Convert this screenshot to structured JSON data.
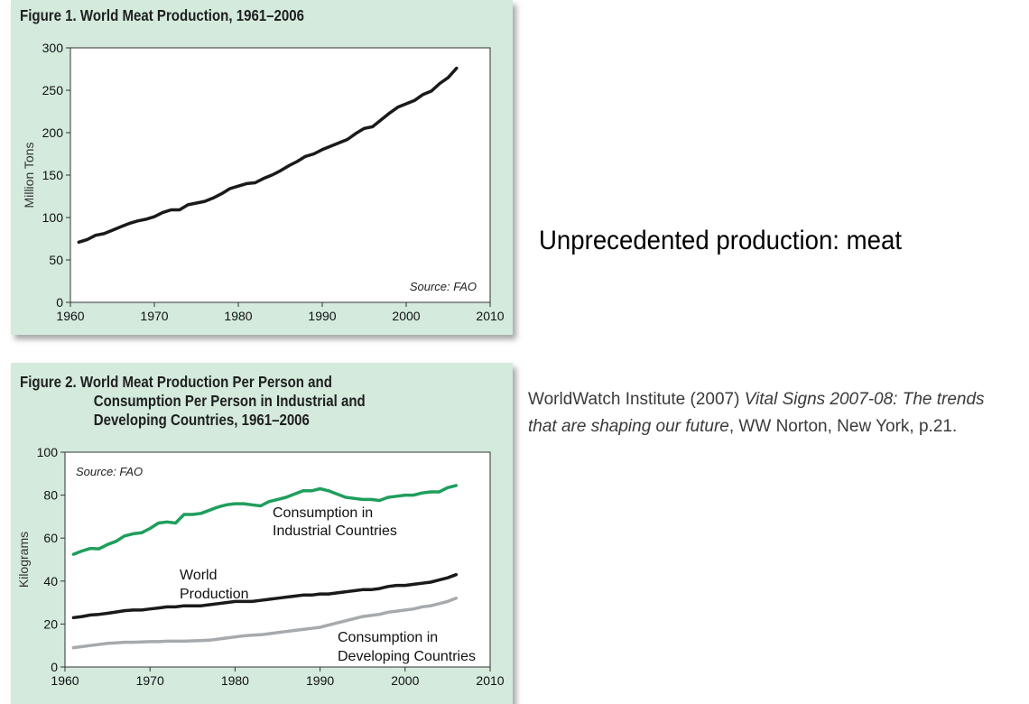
{
  "figure1": {
    "title": "Figure 1. World Meat Production, 1961–2006",
    "source": "Source: FAO",
    "chart_data": {
      "type": "line",
      "title": "Figure 1. World Meat Production, 1961–2006",
      "ylabel": "Million Tons",
      "xlabel": "",
      "xlim": [
        1960,
        2010
      ],
      "ylim": [
        0,
        300
      ],
      "xticks": [
        1960,
        1970,
        1980,
        1990,
        2000,
        2010
      ],
      "yticks": [
        0,
        50,
        100,
        150,
        200,
        250,
        300
      ],
      "grid": false,
      "series": [
        {
          "color": "#1a1a1a",
          "x": [
            1961,
            1962,
            1963,
            1964,
            1965,
            1966,
            1967,
            1968,
            1969,
            1970,
            1971,
            1972,
            1973,
            1974,
            1975,
            1976,
            1977,
            1978,
            1979,
            1980,
            1981,
            1982,
            1983,
            1984,
            1985,
            1986,
            1987,
            1988,
            1989,
            1990,
            1991,
            1992,
            1993,
            1994,
            1995,
            1996,
            1997,
            1998,
            1999,
            2000,
            2001,
            2002,
            2003,
            2004,
            2005,
            2006
          ],
          "y": [
            71,
            74,
            79,
            81,
            85,
            89,
            93,
            96,
            98,
            101,
            106,
            109,
            109,
            115,
            117,
            119,
            123,
            128,
            134,
            137,
            140,
            141,
            146,
            150,
            155,
            161,
            166,
            172,
            175,
            180,
            184,
            188,
            192,
            199,
            205,
            207,
            215,
            223,
            230,
            234,
            238,
            245,
            249,
            258,
            265,
            276
          ]
        }
      ]
    }
  },
  "figure2": {
    "title_line1": "Figure 2. World Meat Production Per Person and",
    "title_line2": "Consumption Per Person in Industrial and",
    "title_line3": "Developing Countries, 1961–2006",
    "source": "Source: FAO",
    "chart_data": {
      "type": "line",
      "title": "Figure 2. World Meat Production Per Person and Consumption Per Person in Industrial and Developing Countries, 1961–2006",
      "ylabel": "Kilograms",
      "xlabel": "",
      "xlim": [
        1960,
        2010
      ],
      "ylim": [
        0,
        100
      ],
      "xticks": [
        1960,
        1970,
        1980,
        1990,
        2000,
        2010
      ],
      "yticks": [
        0,
        20,
        40,
        60,
        80,
        100
      ],
      "grid": false,
      "annotations": {
        "industrial_line1": "Consumption in",
        "industrial_line2": "Industrial Countries",
        "world_line1": "World",
        "world_line2": "Production",
        "developing_line1": "Consumption in",
        "developing_line2": "Developing Countries"
      },
      "series": [
        {
          "name": "Consumption in Industrial Countries",
          "color": "#1f9e5c",
          "x": [
            1961,
            1962,
            1963,
            1964,
            1965,
            1966,
            1967,
            1968,
            1969,
            1970,
            1971,
            1972,
            1973,
            1974,
            1975,
            1976,
            1977,
            1978,
            1979,
            1980,
            1981,
            1982,
            1983,
            1984,
            1985,
            1986,
            1987,
            1988,
            1989,
            1990,
            1991,
            1992,
            1993,
            1994,
            1995,
            1996,
            1997,
            1998,
            1999,
            2000,
            2001,
            2002,
            2003,
            2004,
            2005,
            2006
          ],
          "y": [
            52.5,
            54,
            55.2,
            55,
            57,
            58.5,
            61,
            62,
            62.5,
            64.5,
            67,
            67.5,
            67,
            71,
            71,
            71.5,
            73,
            74.5,
            75.5,
            76,
            76,
            75.5,
            75,
            77,
            78,
            79,
            80.5,
            82,
            82,
            83,
            82,
            80.5,
            79,
            78.5,
            78,
            78,
            77.5,
            79,
            79.5,
            80,
            80,
            81,
            81.5,
            81.5,
            83.5,
            84.5
          ]
        },
        {
          "name": "World Production",
          "color": "#1a1a1a",
          "x": [
            1961,
            1962,
            1963,
            1964,
            1965,
            1966,
            1967,
            1968,
            1969,
            1970,
            1971,
            1972,
            1973,
            1974,
            1975,
            1976,
            1977,
            1978,
            1979,
            1980,
            1981,
            1982,
            1983,
            1984,
            1985,
            1986,
            1987,
            1988,
            1989,
            1990,
            1991,
            1992,
            1993,
            1994,
            1995,
            1996,
            1997,
            1998,
            1999,
            2000,
            2001,
            2002,
            2003,
            2004,
            2005,
            2006
          ],
          "y": [
            23,
            23.5,
            24.2,
            24.5,
            25,
            25.6,
            26.2,
            26.5,
            26.5,
            27,
            27.5,
            28,
            28,
            28.5,
            28.5,
            28.5,
            29,
            29.5,
            30,
            30.5,
            30.5,
            30.5,
            31,
            31.5,
            32,
            32.5,
            33,
            33.5,
            33.5,
            34,
            34,
            34.5,
            35,
            35.5,
            36,
            36,
            36.5,
            37.5,
            38,
            38,
            38.5,
            39,
            39.5,
            40.5,
            41.5,
            43
          ]
        },
        {
          "name": "Consumption in Developing Countries",
          "color": "#a7aaac",
          "x": [
            1961,
            1962,
            1963,
            1964,
            1965,
            1966,
            1967,
            1968,
            1969,
            1970,
            1971,
            1972,
            1973,
            1974,
            1975,
            1976,
            1977,
            1978,
            1979,
            1980,
            1981,
            1982,
            1983,
            1984,
            1985,
            1986,
            1987,
            1988,
            1989,
            1990,
            1991,
            1992,
            1993,
            1994,
            1995,
            1996,
            1997,
            1998,
            1999,
            2000,
            2001,
            2002,
            2003,
            2004,
            2005,
            2006
          ],
          "y": [
            9,
            9.5,
            10,
            10.5,
            11,
            11.2,
            11.5,
            11.5,
            11.7,
            11.8,
            11.8,
            12,
            12,
            12,
            12.2,
            12.3,
            12.5,
            13,
            13.5,
            14,
            14.5,
            14.8,
            15,
            15.5,
            16,
            16.5,
            17,
            17.5,
            18,
            18.5,
            19.5,
            20.5,
            21.5,
            22.5,
            23.5,
            24,
            24.5,
            25.5,
            26,
            26.5,
            27,
            28,
            28.5,
            29.5,
            30.5,
            32
          ]
        }
      ]
    }
  },
  "headline": "Unprecedented production: meat",
  "citation": {
    "prefix": "WorldWatch Institute (2007) ",
    "italic": "Vital Signs 2007-08: The trends that are shaping our future",
    "suffix": ", WW Norton, New York, p.21."
  }
}
